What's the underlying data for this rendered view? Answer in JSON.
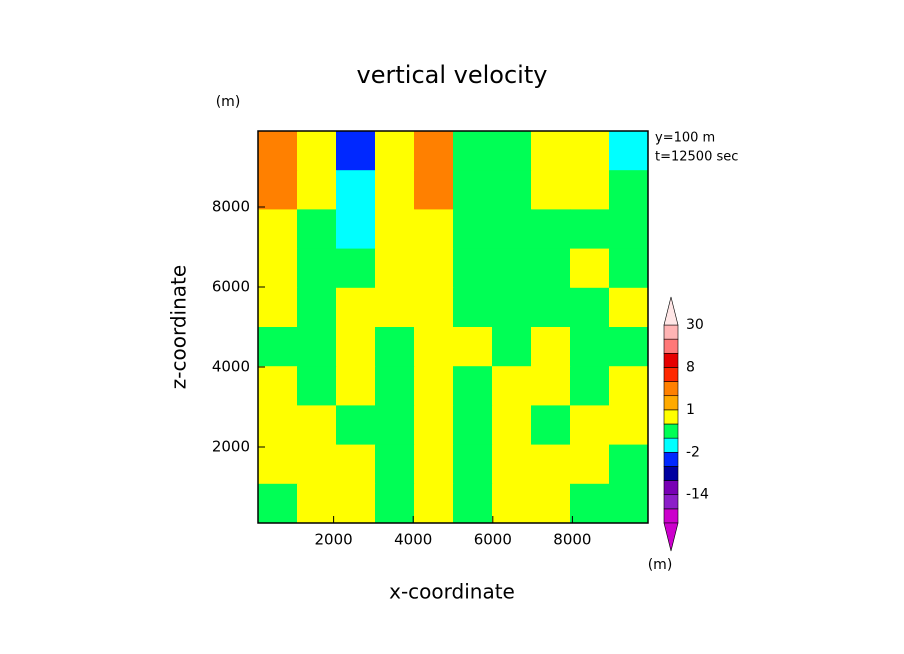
{
  "chart_data": {
    "type": "contour",
    "title": "vertical velocity",
    "x_label": "x-coordinate",
    "y_label": "z-coordinate",
    "y_unit": "(m)",
    "colorbar_unit": "(m)",
    "annotations": [
      "y=100  m",
      "t=12500 sec"
    ],
    "xlim": [
      100,
      9900
    ],
    "ylim": [
      100,
      9900
    ],
    "xticks": [
      2000,
      4000,
      6000,
      8000
    ],
    "yticks": [
      2000,
      4000,
      6000,
      8000
    ],
    "x": [
      590,
      1570,
      2550,
      3530,
      4510,
      5490,
      6470,
      7450,
      8430,
      9410
    ],
    "y": [
      9410,
      8430,
      7450,
      6470,
      5490,
      4510,
      3530,
      2550,
      1570,
      590
    ],
    "z": [
      [
        2,
        0.5,
        -3,
        0.5,
        2,
        -0.5,
        -0.5,
        0.5,
        0.5,
        -1.5
      ],
      [
        2,
        0.5,
        -1.5,
        0.5,
        2,
        -0.5,
        -0.5,
        0.5,
        0.5,
        -0.5
      ],
      [
        0.5,
        -0.5,
        -1.5,
        0.5,
        0.5,
        -0.5,
        -0.5,
        -0.5,
        -0.5,
        -0.5
      ],
      [
        0.5,
        -0.5,
        -0.5,
        0.5,
        0.5,
        -0.5,
        -0.5,
        -0.5,
        0.5,
        -0.5
      ],
      [
        0.5,
        -0.5,
        0.5,
        0.5,
        0.5,
        -0.5,
        -0.5,
        -0.5,
        -0.5,
        0.5
      ],
      [
        -0.5,
        -0.5,
        0.5,
        -0.5,
        0.5,
        0.5,
        -0.5,
        0.5,
        -0.5,
        -0.5
      ],
      [
        0.5,
        -0.5,
        0.5,
        -0.5,
        0.5,
        -0.5,
        0.5,
        0.5,
        -0.5,
        0.5
      ],
      [
        0.5,
        0.5,
        -0.5,
        -0.5,
        0.5,
        -0.5,
        0.5,
        -0.5,
        0.5,
        0.5
      ],
      [
        0.5,
        0.5,
        0.5,
        -0.5,
        0.5,
        -0.5,
        0.5,
        0.5,
        0.5,
        -0.5
      ],
      [
        -0.5,
        0.5,
        0.5,
        -0.5,
        0.5,
        -0.5,
        0.5,
        0.5,
        -0.5,
        -0.5
      ]
    ],
    "levels": [
      -20,
      -17,
      -14,
      -8,
      -4,
      -2,
      -1,
      0,
      1,
      2,
      4,
      8,
      12,
      16,
      30
    ],
    "colors": [
      "#cc00cc",
      "#cc00cc",
      "#8c1ec8",
      "#7800b4",
      "#0000a0",
      "#0028ff",
      "#00ffff",
      "#00ff55",
      "#ffff00",
      "#ffaa00",
      "#ff8000",
      "#ff2800",
      "#e60000",
      "#ff7878",
      "#ffb4b4",
      "#ffe6e6"
    ],
    "colorbar_ticks": [
      -14,
      -2,
      1,
      8,
      30
    ]
  }
}
